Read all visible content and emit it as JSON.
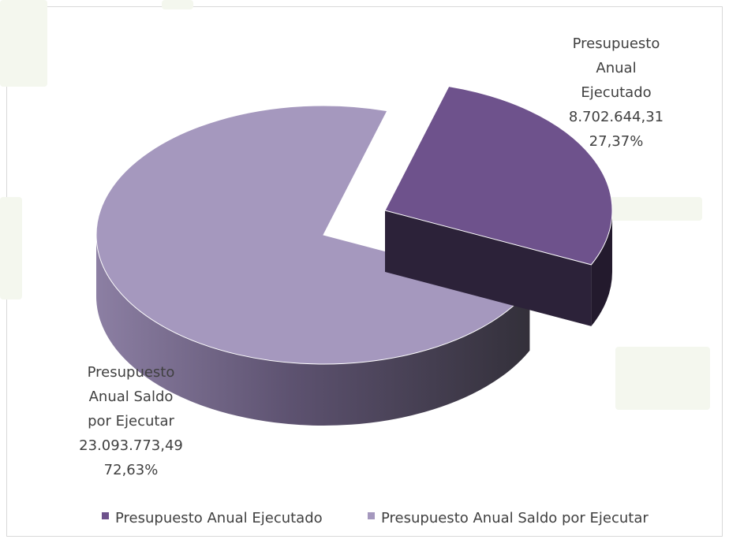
{
  "chart_data": {
    "type": "pie",
    "style": "3d-exploded",
    "slices": [
      {
        "name": "Presupuesto Anual Ejecutado",
        "value": 8702644.31,
        "value_label": "8.702.644,31",
        "percent_label": "27,37%",
        "label_lines": [
          "Presupuesto",
          "Anual",
          "Ejecutado"
        ],
        "color": "#6e528c"
      },
      {
        "name": "Presupuesto Anual Saldo por Ejecutar",
        "value": 23093773.49,
        "value_label": "23.093.773,49",
        "percent_label": "72,63%",
        "label_lines": [
          "Presupuesto",
          "Anual Saldo",
          "por Ejecutar"
        ],
        "color": "#a598be"
      }
    ],
    "legend": {
      "position": "bottom",
      "items": [
        {
          "label": "Presupuesto Anual Ejecutado",
          "color": "#6e528c"
        },
        {
          "label": "Presupuesto Anual Saldo por Ejecutar",
          "color": "#a598be"
        }
      ]
    }
  }
}
